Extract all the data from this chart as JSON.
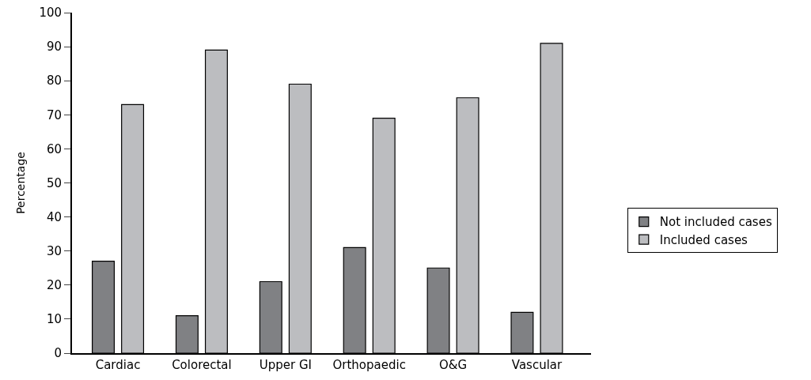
{
  "chart_data": {
    "type": "bar",
    "ylabel": "Percentage",
    "categories": [
      "Cardiac",
      "Colorectal",
      "Upper GI",
      "Orthopaedic",
      "O&G",
      "Vascular"
    ],
    "series": [
      {
        "name": "Not included cases",
        "color": "#808184",
        "values": [
          27,
          11,
          21,
          31,
          25,
          12
        ]
      },
      {
        "name": "Included cases",
        "color": "#bcbdc0",
        "values": [
          73,
          89,
          79,
          69,
          75,
          91
        ]
      }
    ],
    "ylim": [
      0,
      100
    ],
    "yticks": [
      0,
      10,
      20,
      30,
      40,
      50,
      60,
      70,
      80,
      90,
      100
    ],
    "legend": "right"
  }
}
